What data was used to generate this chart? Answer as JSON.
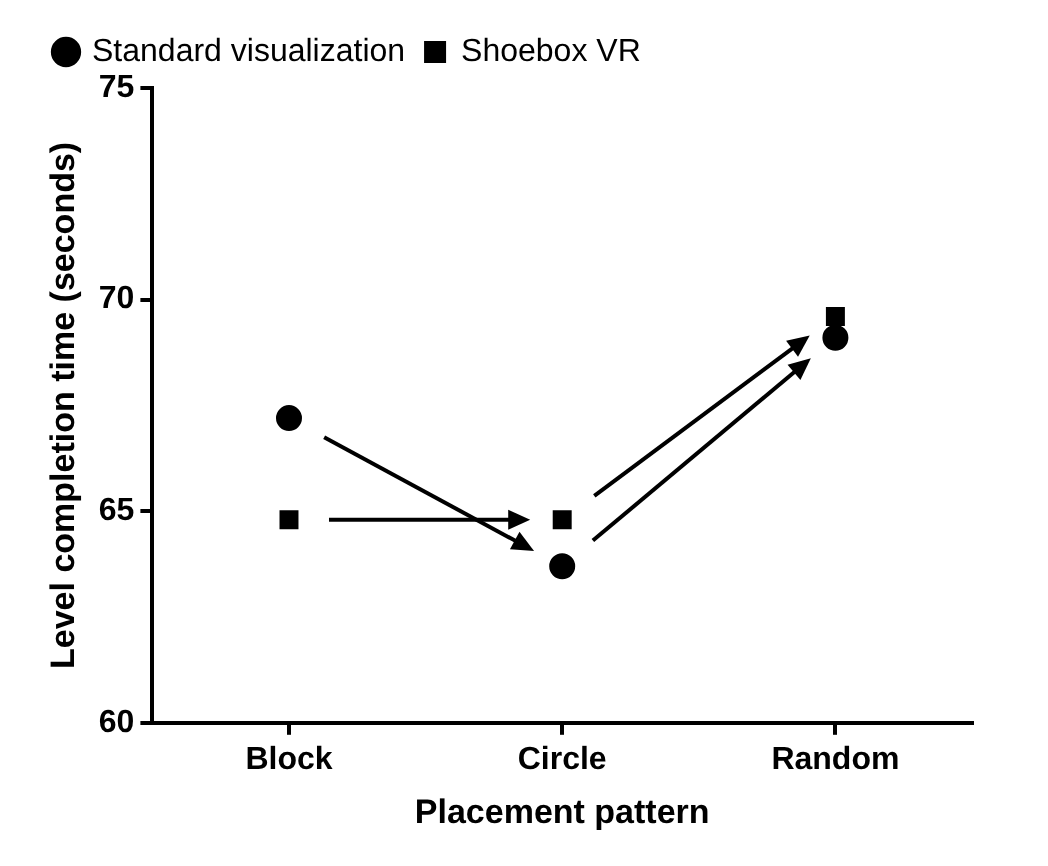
{
  "chart_data": {
    "type": "scatter",
    "xlabel": "Placement pattern",
    "ylabel": "Level completion time (seconds)",
    "categories": [
      "Block",
      "Circle",
      "Random"
    ],
    "series": [
      {
        "name": "Standard visualization",
        "color": "#000000",
        "marker": "circle",
        "values": [
          67.2,
          63.7,
          69.1
        ]
      },
      {
        "name": "Shoebox VR",
        "color": "#000000",
        "marker": "square",
        "values": [
          64.8,
          64.8,
          69.6
        ]
      }
    ],
    "ylim": [
      60,
      75
    ],
    "yticks": [
      60,
      65,
      70,
      75
    ],
    "grid": false,
    "legend": "top left"
  }
}
